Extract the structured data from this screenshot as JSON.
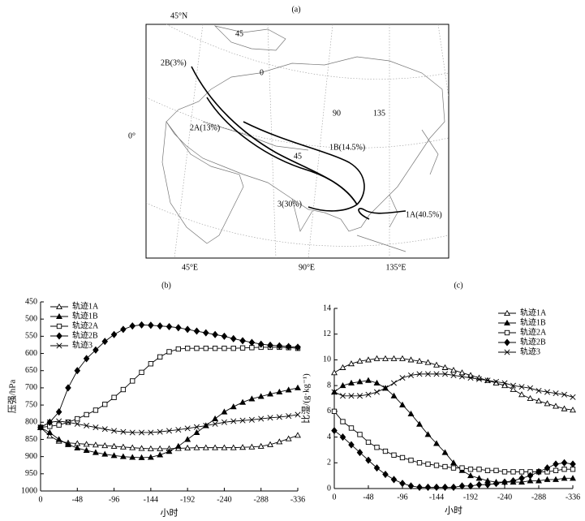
{
  "map": {
    "title": "(a)",
    "labels": [
      "45°N",
      "0°",
      "45°E",
      "90°E",
      "135°E",
      "45",
      "0",
      "90",
      "135",
      "45",
      "2B(3%)",
      "2A(13%)",
      "1B(14.5%)",
      "3(30%)",
      "1A(40.5%)"
    ]
  },
  "chart_data": [
    {
      "type": "line",
      "title": "(b)",
      "y_label": "压强/hPa",
      "x_label": "小时",
      "y_inverted": true,
      "legend": "upper-left",
      "x": [
        0,
        -12,
        -24,
        -36,
        -48,
        -60,
        -72,
        -84,
        -96,
        -108,
        -120,
        -132,
        -144,
        -156,
        -168,
        -180,
        -192,
        -204,
        -216,
        -228,
        -240,
        -252,
        -264,
        -276,
        -288,
        -300,
        -312,
        -324,
        -336
      ],
      "xlim": [
        0,
        -336
      ],
      "xticks": [
        0,
        -48,
        -96,
        -144,
        -192,
        -240,
        -288,
        -336
      ],
      "ylim": [
        1000,
        450
      ],
      "yticks": [
        450,
        500,
        550,
        600,
        650,
        700,
        750,
        800,
        850,
        900,
        950,
        1000
      ],
      "series": [
        {
          "name": "轨迹1A",
          "color": "#000000",
          "marker": "triangle-open",
          "values": [
            815,
            840,
            855,
            860,
            862,
            864,
            866,
            868,
            870,
            872,
            874,
            876,
            877,
            877,
            877,
            876,
            875,
            874,
            874,
            874,
            874,
            874,
            873,
            872,
            870,
            865,
            857,
            848,
            838
          ]
        },
        {
          "name": "轨迹1B",
          "color": "#000000",
          "marker": "triangle-filled",
          "values": [
            815,
            830,
            850,
            865,
            875,
            882,
            888,
            893,
            897,
            900,
            902,
            903,
            902,
            895,
            885,
            870,
            850,
            830,
            810,
            790,
            770,
            755,
            742,
            732,
            725,
            718,
            712,
            706,
            700
          ]
        },
        {
          "name": "轨迹2A",
          "color": "#000000",
          "marker": "square-open",
          "values": [
            815,
            812,
            808,
            800,
            790,
            778,
            765,
            748,
            728,
            705,
            680,
            655,
            630,
            610,
            595,
            587,
            585,
            585,
            585,
            585,
            585,
            585,
            584,
            583,
            582,
            582,
            582,
            583,
            585
          ]
        },
        {
          "name": "轨迹2B",
          "color": "#000000",
          "marker": "diamond-filled",
          "values": [
            815,
            800,
            770,
            700,
            650,
            615,
            590,
            565,
            545,
            530,
            520,
            517,
            518,
            520,
            522,
            525,
            530,
            535,
            540,
            545,
            550,
            557,
            563,
            568,
            573,
            576,
            578,
            580,
            582
          ]
        },
        {
          "name": "轨迹3",
          "color": "#000000",
          "marker": "cross",
          "values": [
            815,
            800,
            797,
            800,
            805,
            810,
            815,
            820,
            825,
            828,
            830,
            830,
            830,
            828,
            825,
            822,
            818,
            814,
            810,
            805,
            800,
            797,
            795,
            793,
            790,
            787,
            785,
            782,
            778
          ]
        }
      ]
    },
    {
      "type": "line",
      "title": "(c)",
      "y_label": "比湿/(g·kg⁻¹)",
      "x_label": "小时",
      "y_inverted": false,
      "legend": "upper-right",
      "x": [
        0,
        -12,
        -24,
        -36,
        -48,
        -60,
        -72,
        -84,
        -96,
        -108,
        -120,
        -132,
        -144,
        -156,
        -168,
        -180,
        -192,
        -204,
        -216,
        -228,
        -240,
        -252,
        -264,
        -276,
        -288,
        -300,
        -312,
        -324,
        -336
      ],
      "xlim": [
        0,
        -336
      ],
      "xticks": [
        0,
        -48,
        -96,
        -144,
        -192,
        -240,
        -288,
        -336
      ],
      "ylim": [
        0,
        14
      ],
      "yticks": [
        0,
        2,
        4,
        6,
        8,
        10,
        12,
        14
      ],
      "series": [
        {
          "name": "轨迹1A",
          "color": "#000000",
          "marker": "triangle-open",
          "values": [
            9.0,
            9.4,
            9.7,
            9.9,
            10.0,
            10.1,
            10.1,
            10.1,
            10.1,
            10.0,
            9.9,
            9.8,
            9.6,
            9.4,
            9.2,
            9.0,
            8.8,
            8.6,
            8.4,
            8.2,
            8.0,
            7.7,
            7.3,
            7.0,
            6.8,
            6.6,
            6.4,
            6.2,
            6.1
          ]
        },
        {
          "name": "轨迹1B",
          "color": "#000000",
          "marker": "triangle-filled",
          "values": [
            7.5,
            8.0,
            8.2,
            8.3,
            8.4,
            8.2,
            7.8,
            7.2,
            6.5,
            5.8,
            5.0,
            4.2,
            3.5,
            2.8,
            2.0,
            1.4,
            1.0,
            0.8,
            0.6,
            0.5,
            0.5,
            0.5,
            0.5,
            0.6,
            0.6,
            0.7,
            0.7,
            0.8,
            0.8
          ]
        },
        {
          "name": "轨迹2A",
          "color": "#000000",
          "marker": "square-open",
          "values": [
            6.0,
            5.2,
            4.7,
            4.2,
            3.6,
            3.2,
            2.9,
            2.6,
            2.4,
            2.2,
            2.0,
            1.9,
            1.8,
            1.7,
            1.6,
            1.6,
            1.5,
            1.5,
            1.4,
            1.4,
            1.3,
            1.3,
            1.3,
            1.3,
            1.3,
            1.3,
            1.4,
            1.5,
            1.5
          ]
        },
        {
          "name": "轨迹2B",
          "color": "#000000",
          "marker": "diamond-filled",
          "values": [
            4.5,
            4.0,
            3.4,
            2.8,
            2.2,
            1.6,
            1.1,
            0.7,
            0.4,
            0.2,
            0.1,
            0.1,
            0.1,
            0.1,
            0.1,
            0.2,
            0.2,
            0.3,
            0.3,
            0.4,
            0.5,
            0.6,
            0.8,
            1.0,
            1.3,
            1.6,
            1.9,
            2.0,
            1.9
          ]
        },
        {
          "name": "轨迹3",
          "color": "#000000",
          "marker": "cross",
          "values": [
            7.5,
            7.2,
            7.2,
            7.2,
            7.3,
            7.5,
            7.8,
            8.2,
            8.6,
            8.8,
            8.9,
            8.9,
            8.9,
            8.9,
            8.8,
            8.7,
            8.6,
            8.5,
            8.4,
            8.3,
            8.2,
            8.0,
            7.9,
            7.8,
            7.6,
            7.5,
            7.4,
            7.3,
            7.1
          ]
        }
      ]
    }
  ]
}
